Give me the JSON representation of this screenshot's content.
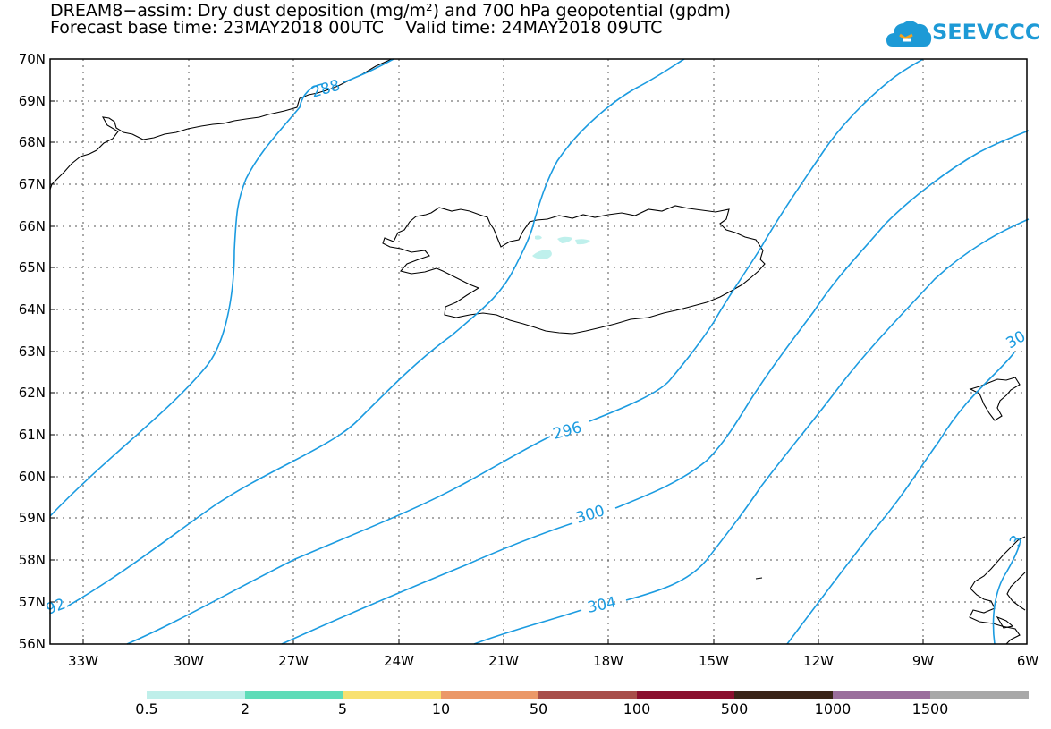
{
  "header": {
    "title_line_1": "DREAM8−assim: Dry dust deposition (mg/m²) and 700 hPa geopotential (gpdm)",
    "title_line_2": "Forecast base time: 23MAY2018 00UTC    Valid time: 24MAY2018 09UTC",
    "logo_text": "SEEVCCC",
    "logo_color": "#1d9ad6"
  },
  "map": {
    "lat_labels": [
      "70N",
      "69N",
      "68N",
      "67N",
      "66N",
      "65N",
      "64N",
      "63N",
      "62N",
      "61N",
      "60N",
      "59N",
      "58N",
      "57N",
      "56N"
    ],
    "lon_labels": [
      "33W",
      "30W",
      "27W",
      "24W",
      "21W",
      "18W",
      "15W",
      "12W",
      "9W",
      "6W"
    ],
    "lat_range": [
      56,
      70
    ],
    "lon_range": [
      -34.5,
      -6
    ],
    "contour_color": "#1b9be0",
    "contour_labels": [
      "288",
      "296",
      "300",
      "304",
      "92",
      "30",
      "3"
    ],
    "dust_color": "#bff0ec"
  },
  "colorbar": {
    "colors": [
      "#bfefea",
      "#5fdcb8",
      "#f8e170",
      "#eb9868",
      "#a84e4a",
      "#8a0f2e",
      "#3a2418",
      "#9a6e9c",
      "#a8a8a8"
    ],
    "labels": [
      "0.5",
      "2",
      "5",
      "10",
      "50",
      "100",
      "500",
      "1000",
      "1500"
    ]
  }
}
